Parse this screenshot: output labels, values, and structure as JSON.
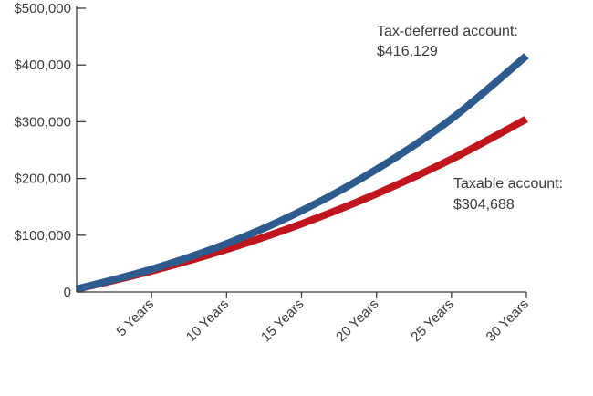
{
  "chart_data": {
    "type": "line",
    "title": "",
    "xlabel": "",
    "ylabel": "",
    "xlim": [
      0,
      30
    ],
    "ylim": [
      0,
      500000
    ],
    "x_ticks": [
      5,
      10,
      15,
      20,
      25,
      30
    ],
    "x_tick_labels": [
      "5 Years",
      "10 Years",
      "15 Years",
      "20 Years",
      "25 Years",
      "30 Years"
    ],
    "y_ticks": [
      0,
      100000,
      200000,
      300000,
      400000,
      500000
    ],
    "y_tick_labels": [
      "0",
      "$100,000",
      "$200,000",
      "$300,000",
      "$400,000",
      "$500,000"
    ],
    "grid": false,
    "legend": "none",
    "series": [
      {
        "key": "tax_deferred",
        "color": "#2e5b8e",
        "x": [
          0,
          5,
          10,
          15,
          20,
          25,
          30
        ],
        "values": [
          5000,
          40000,
          85000,
          143000,
          216000,
          305000,
          416129
        ]
      },
      {
        "key": "taxable",
        "color": "#c0151c",
        "x": [
          0,
          5,
          10,
          15,
          20,
          25,
          30
        ],
        "values": [
          5000,
          37000,
          75000,
          120000,
          173000,
          234000,
          304688
        ]
      }
    ],
    "annotations": [
      {
        "key": "tax_deferred",
        "line1": "Tax-deferred account:",
        "line2": "$416,129"
      },
      {
        "key": "taxable",
        "line1": "Taxable account:",
        "line2": "$304,688"
      }
    ]
  }
}
